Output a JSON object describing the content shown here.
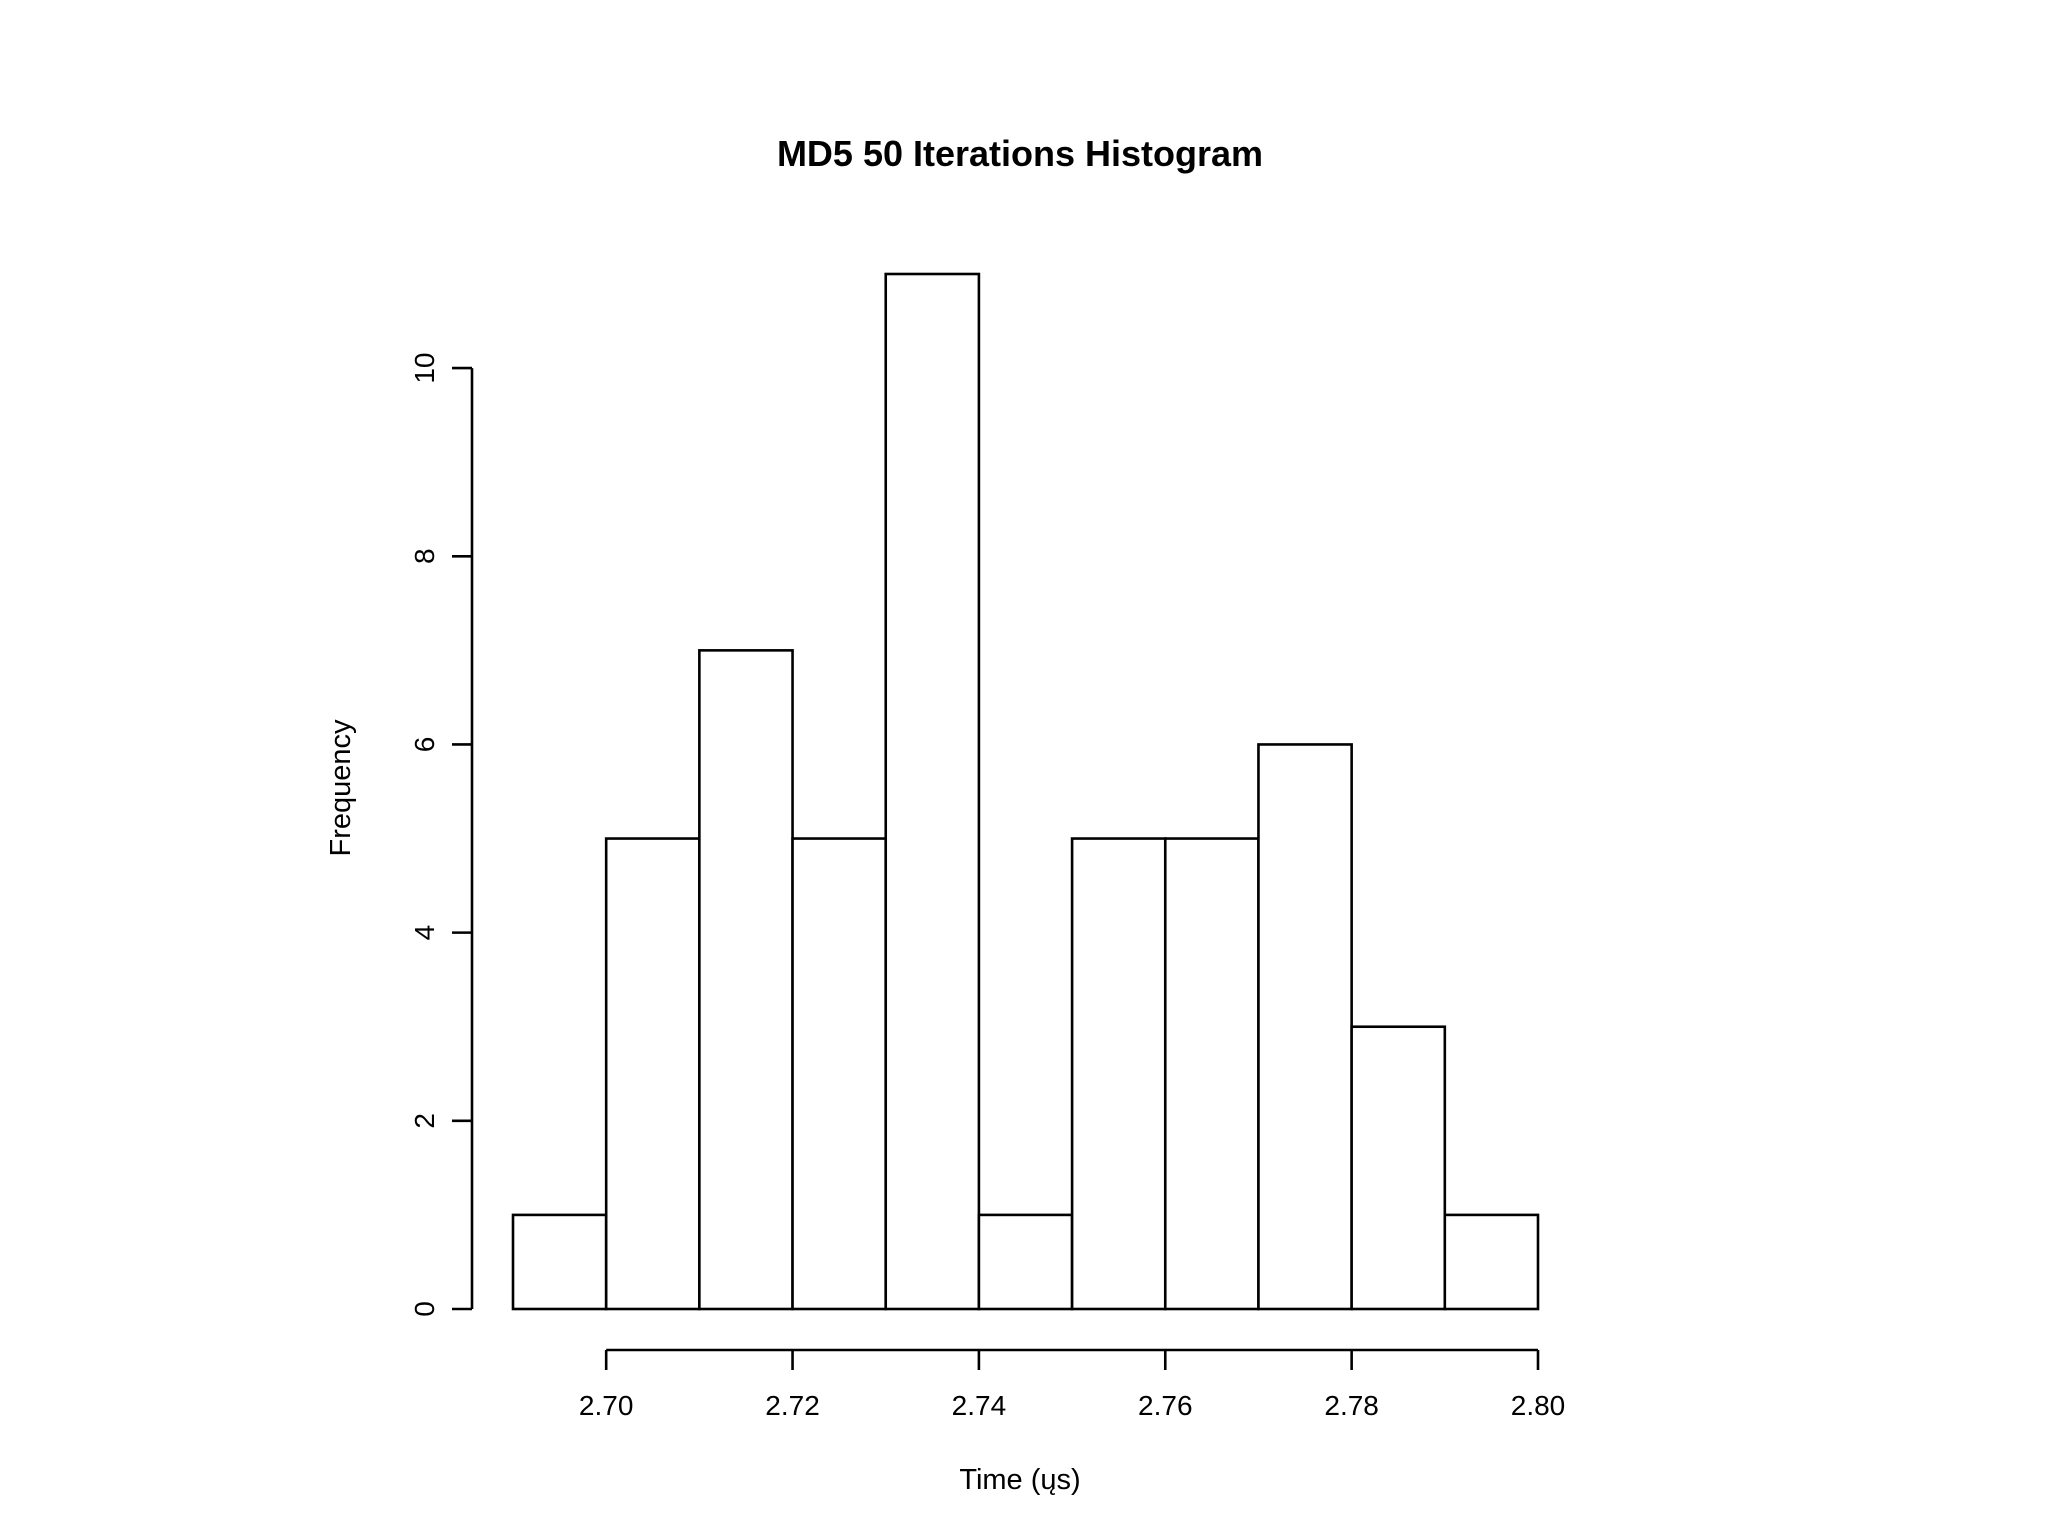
{
  "chart_data": {
    "type": "bar",
    "title": "MD5 50 Iterations Histogram",
    "xlabel": "Time (ųs)",
    "ylabel": "Frequency",
    "bins": [
      {
        "start": 2.69,
        "end": 2.7,
        "count": 1
      },
      {
        "start": 2.7,
        "end": 2.71,
        "count": 5
      },
      {
        "start": 2.71,
        "end": 2.72,
        "count": 7
      },
      {
        "start": 2.72,
        "end": 2.73,
        "count": 5
      },
      {
        "start": 2.73,
        "end": 2.74,
        "count": 11
      },
      {
        "start": 2.74,
        "end": 2.75,
        "count": 1
      },
      {
        "start": 2.75,
        "end": 2.76,
        "count": 5
      },
      {
        "start": 2.76,
        "end": 2.77,
        "count": 5
      },
      {
        "start": 2.77,
        "end": 2.78,
        "count": 6
      },
      {
        "start": 2.78,
        "end": 2.79,
        "count": 3
      },
      {
        "start": 2.79,
        "end": 2.8,
        "count": 1
      }
    ],
    "xticks": [
      2.7,
      2.72,
      2.74,
      2.76,
      2.78,
      2.8
    ],
    "xtick_labels": [
      "2.70",
      "2.72",
      "2.74",
      "2.76",
      "2.78",
      "2.80"
    ],
    "yticks": [
      0,
      2,
      4,
      6,
      8,
      10
    ],
    "ytick_labels": [
      "0",
      "2",
      "4",
      "6",
      "8",
      "10"
    ],
    "xlim": [
      2.69,
      2.8
    ],
    "ylim": [
      0,
      11
    ],
    "grid": false,
    "bar_fill": "#ffffff",
    "bar_stroke": "#000000"
  }
}
